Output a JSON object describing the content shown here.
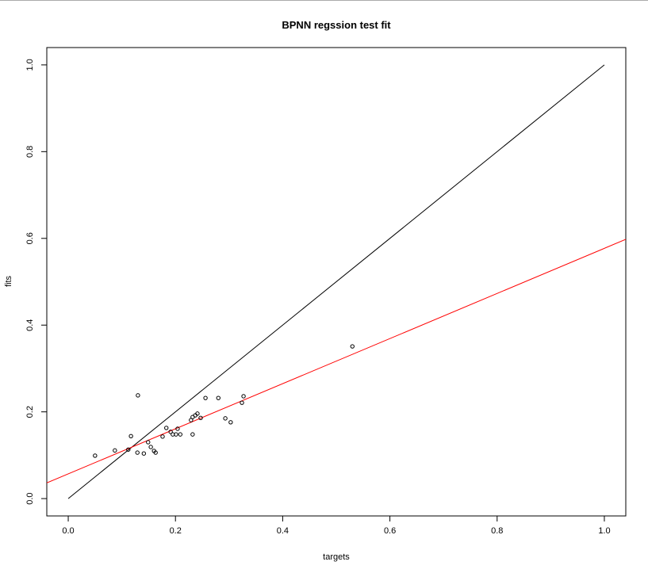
{
  "chart_data": {
    "type": "scatter",
    "title": "BPNN regssion test fit",
    "x_label": "targets",
    "y_label": "fits",
    "xlim": [
      -0.04,
      1.04
    ],
    "ylim": [
      -0.04,
      1.04
    ],
    "xticks": [
      {
        "value": 0,
        "label": "0.0"
      },
      0.2,
      0.4,
      0.6,
      0.8,
      {
        "value": 1,
        "label": "1.0"
      }
    ],
    "yticks": [
      {
        "value": 0,
        "label": "0.0"
      },
      0.2,
      0.4,
      0.6,
      0.8,
      {
        "value": 1,
        "label": "1.0"
      }
    ],
    "series": [
      {
        "color": "#000000",
        "x": [
          0.05,
          0.087,
          0.112,
          0.117,
          0.13,
          0.129,
          0.141,
          0.149,
          0.154,
          0.16,
          0.163,
          0.176,
          0.183,
          0.191,
          0.195,
          0.201,
          0.204,
          0.209,
          0.229,
          0.232,
          0.232,
          0.237,
          0.241,
          0.247,
          0.256,
          0.28,
          0.293,
          0.303,
          0.324,
          0.327,
          0.53
        ],
        "values": [
          0.099,
          0.111,
          0.113,
          0.144,
          0.238,
          0.106,
          0.104,
          0.13,
          0.119,
          0.11,
          0.106,
          0.143,
          0.163,
          0.154,
          0.148,
          0.148,
          0.161,
          0.148,
          0.181,
          0.188,
          0.148,
          0.192,
          0.196,
          0.186,
          0.232,
          0.232,
          0.185,
          0.176,
          0.221,
          0.236,
          0.351
        ]
      }
    ],
    "reference_line": {
      "x": [
        0,
        1
      ],
      "values": [
        0,
        1
      ],
      "color": "#000000"
    },
    "fit_line": {
      "intercept": 0.057,
      "slope": 0.52,
      "color": "#ff0000"
    }
  }
}
